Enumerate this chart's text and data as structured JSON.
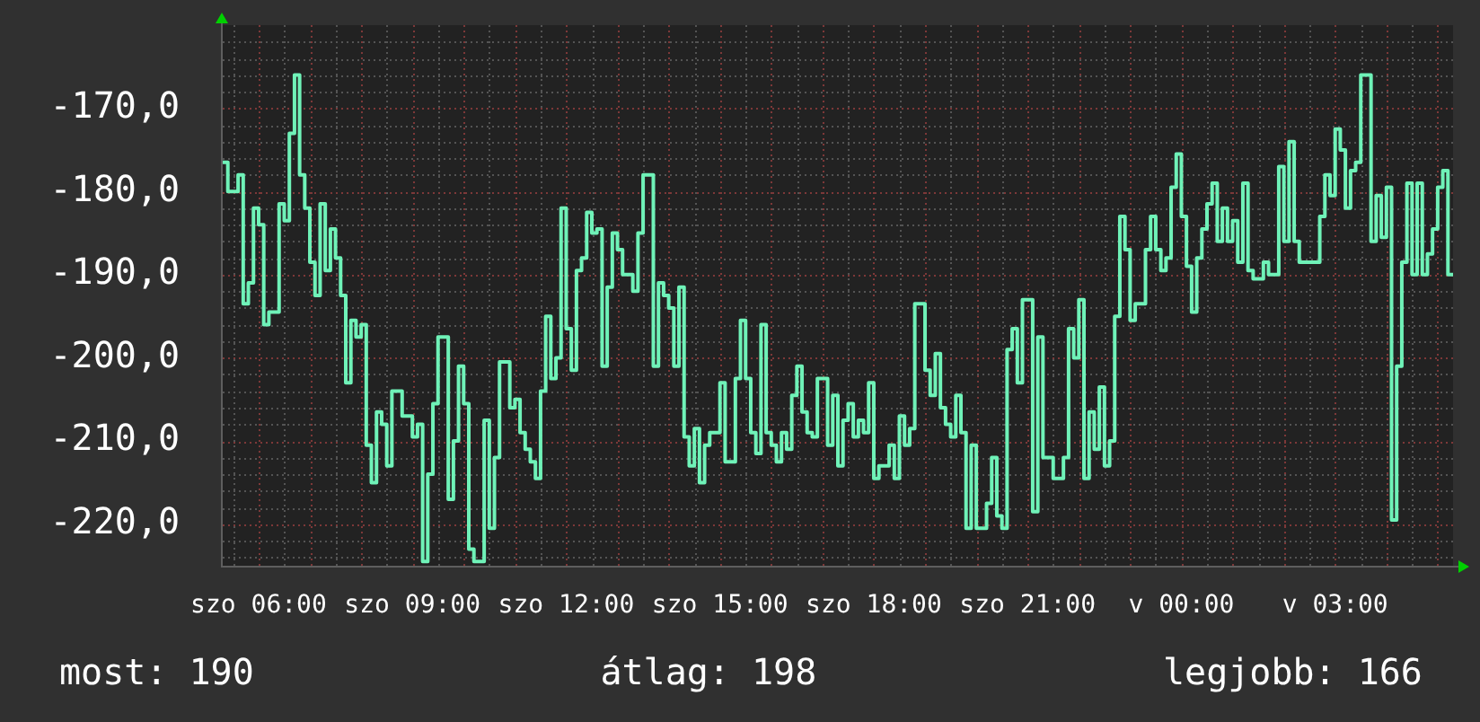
{
  "chart_data": {
    "type": "step",
    "categories": [
      null,
      null,
      null,
      null,
      null,
      null,
      null,
      "szo 06:00",
      null,
      null,
      null,
      null,
      null,
      null,
      null,
      null,
      null,
      null,
      null,
      null,
      null,
      null,
      null,
      null,
      null,
      null,
      null,
      null,
      null,
      null,
      null,
      null,
      null,
      null,
      null,
      null,
      null,
      "szo 09:00",
      null,
      null,
      null,
      null,
      null,
      null,
      null,
      null,
      null,
      null,
      null,
      null,
      null,
      null,
      null,
      null,
      null,
      null,
      null,
      null,
      null,
      null,
      null,
      null,
      null,
      null,
      null,
      null,
      null,
      "szo 12:00",
      null,
      null,
      null,
      null,
      null,
      null,
      null,
      null,
      null,
      null,
      null,
      null,
      null,
      null,
      null,
      null,
      null,
      null,
      null,
      null,
      null,
      null,
      null,
      null,
      null,
      null,
      null,
      null,
      null,
      "szo 15:00",
      null,
      null,
      null,
      null,
      null,
      null,
      null,
      null,
      null,
      null,
      null,
      null,
      null,
      null,
      null,
      null,
      null,
      null,
      null,
      null,
      null,
      null,
      null,
      null,
      null,
      null,
      null,
      null,
      null,
      "szo 18:00",
      null,
      null,
      null,
      null,
      null,
      null,
      null,
      null,
      null,
      null,
      null,
      null,
      null,
      null,
      null,
      null,
      null,
      null,
      null,
      null,
      null,
      null,
      null,
      null,
      null,
      null,
      null,
      null,
      null,
      "szo 21:00",
      null,
      null,
      null,
      null,
      null,
      null,
      null,
      null,
      null,
      null,
      null,
      null,
      null,
      null,
      null,
      null,
      null,
      null,
      null,
      null,
      null,
      null,
      null,
      null,
      null,
      null,
      null,
      null,
      null,
      "v 00:00",
      null,
      null,
      null,
      null,
      null,
      null,
      null,
      null,
      null,
      null,
      null,
      null,
      null,
      null,
      null,
      null,
      null,
      null,
      null,
      null,
      null,
      null,
      null,
      null,
      null,
      null,
      null,
      null,
      null,
      "v 03:00",
      null,
      null,
      null,
      null,
      null,
      null,
      null,
      null,
      null,
      null,
      null,
      null,
      null,
      null,
      null,
      null,
      null,
      null,
      null,
      null,
      null,
      null,
      null
    ],
    "values": [
      -176.5,
      -180,
      -180,
      -178,
      -193.5,
      -191,
      -182,
      -184,
      -196,
      -194.5,
      -194.5,
      -181.5,
      -183.5,
      -173,
      -166,
      -178,
      -182,
      -188.5,
      -192.5,
      -181.5,
      -189.5,
      -184.5,
      -188,
      -192.5,
      -203,
      -195.5,
      -197.5,
      -196,
      -210.5,
      -215,
      -206.5,
      -208,
      -213,
      -204,
      -204,
      -207,
      -207,
      -209.5,
      -208,
      -224.5,
      -214,
      -205.5,
      -197.5,
      -197.5,
      -217,
      -210,
      -201,
      -205.5,
      -223,
      -224.5,
      -224.5,
      -207.5,
      -220.5,
      -212,
      -200.5,
      -200.5,
      -206,
      -205,
      -209,
      -211,
      -212.5,
      -214.5,
      -204,
      -195,
      -202.5,
      -200,
      -182,
      -196.5,
      -201.5,
      -189.5,
      -188,
      -182.5,
      -185,
      -184.5,
      -201,
      -191.5,
      -185,
      -187,
      -190,
      -190,
      -192,
      -185,
      -178,
      -178,
      -201,
      -191,
      -192.5,
      -194,
      -201,
      -191.5,
      -209.5,
      -213,
      -208.5,
      -215,
      -210.5,
      -209,
      -209,
      -203,
      -212.5,
      -212.5,
      -202.5,
      -195.5,
      -202.5,
      -209,
      -211.5,
      -196,
      -209,
      -210.5,
      -212.5,
      -209,
      -211,
      -204.5,
      -201,
      -206.5,
      -209,
      -209.5,
      -202.5,
      -202.5,
      -210.5,
      -204.5,
      -213,
      -207.5,
      -205.5,
      -209.5,
      -207.5,
      -209,
      -203,
      -214.5,
      -213,
      -213,
      -210.5,
      -214.5,
      -207,
      -210.5,
      -208.5,
      -193.5,
      -193.5,
      -201.5,
      -204.5,
      -199.5,
      -206,
      -208,
      -209.5,
      -204.5,
      -209,
      -220.5,
      -210.5,
      -220.5,
      -220.5,
      -217.5,
      -212,
      -219,
      -220.5,
      -199,
      -196.5,
      -203,
      -193,
      -193,
      -218.5,
      -197.5,
      -212,
      -212,
      -214.5,
      -214.5,
      -212,
      -196.5,
      -200,
      -193,
      -214.5,
      -206.5,
      -211,
      -203.5,
      -213,
      -210,
      -195,
      -183,
      -187,
      -195.5,
      -193.5,
      -193.5,
      -187,
      -183,
      -187,
      -189.5,
      -188,
      -179.5,
      -175.5,
      -183,
      -189,
      -194.5,
      -188,
      -184.5,
      -181.5,
      -179,
      -186,
      -182,
      -186,
      -183.5,
      -188.5,
      -179,
      -189.5,
      -190.5,
      -190.5,
      -188.5,
      -190,
      -190,
      -177,
      -186,
      -174,
      -186,
      -188.5,
      -188.5,
      -188.5,
      -188.5,
      -183,
      -178,
      -180.5,
      -172.5,
      -175,
      -182,
      -177.5,
      -176.5,
      -166,
      -166,
      -186,
      -180.5,
      -185.5,
      -179.5,
      -219.5,
      -201,
      -188.5,
      -179,
      -190,
      -179,
      -190,
      -187.5,
      -184.5,
      -179.5,
      -177.5,
      -190,
      -190
    ],
    "color": "#6ff2b8",
    "ylim": [
      -225,
      -160
    ],
    "yticks": [
      {
        "value": -224,
        "label": null
      },
      {
        "value": -222,
        "label": null
      },
      {
        "value": -220,
        "label": "-220,0"
      },
      {
        "value": -218,
        "label": null
      },
      {
        "value": -216,
        "label": null
      },
      {
        "value": -214,
        "label": null
      },
      {
        "value": -212,
        "label": null
      },
      {
        "value": -210,
        "label": "-210,0"
      },
      {
        "value": -208,
        "label": null
      },
      {
        "value": -206,
        "label": null
      },
      {
        "value": -204,
        "label": null
      },
      {
        "value": -202,
        "label": null
      },
      {
        "value": -200,
        "label": "-200,0"
      },
      {
        "value": -198,
        "label": null
      },
      {
        "value": -196,
        "label": null
      },
      {
        "value": -194,
        "label": null
      },
      {
        "value": -192,
        "label": null
      },
      {
        "value": -190,
        "label": "-190,0"
      },
      {
        "value": -188,
        "label": null
      },
      {
        "value": -186,
        "label": null
      },
      {
        "value": -184,
        "label": null
      },
      {
        "value": -182,
        "label": null
      },
      {
        "value": -180,
        "label": "-180,0"
      },
      {
        "value": -178,
        "label": null
      },
      {
        "value": -176,
        "label": null
      },
      {
        "value": -174,
        "label": null
      },
      {
        "value": -172,
        "label": null
      },
      {
        "value": -170,
        "label": "-170,0"
      },
      {
        "value": -168,
        "label": null
      },
      {
        "value": -166,
        "label": null
      },
      {
        "value": -164,
        "label": null
      },
      {
        "value": -162,
        "label": null
      }
    ],
    "grid": true,
    "annotations": [
      "most: 190",
      "átlag: 198",
      "legjobb: 166"
    ]
  }
}
